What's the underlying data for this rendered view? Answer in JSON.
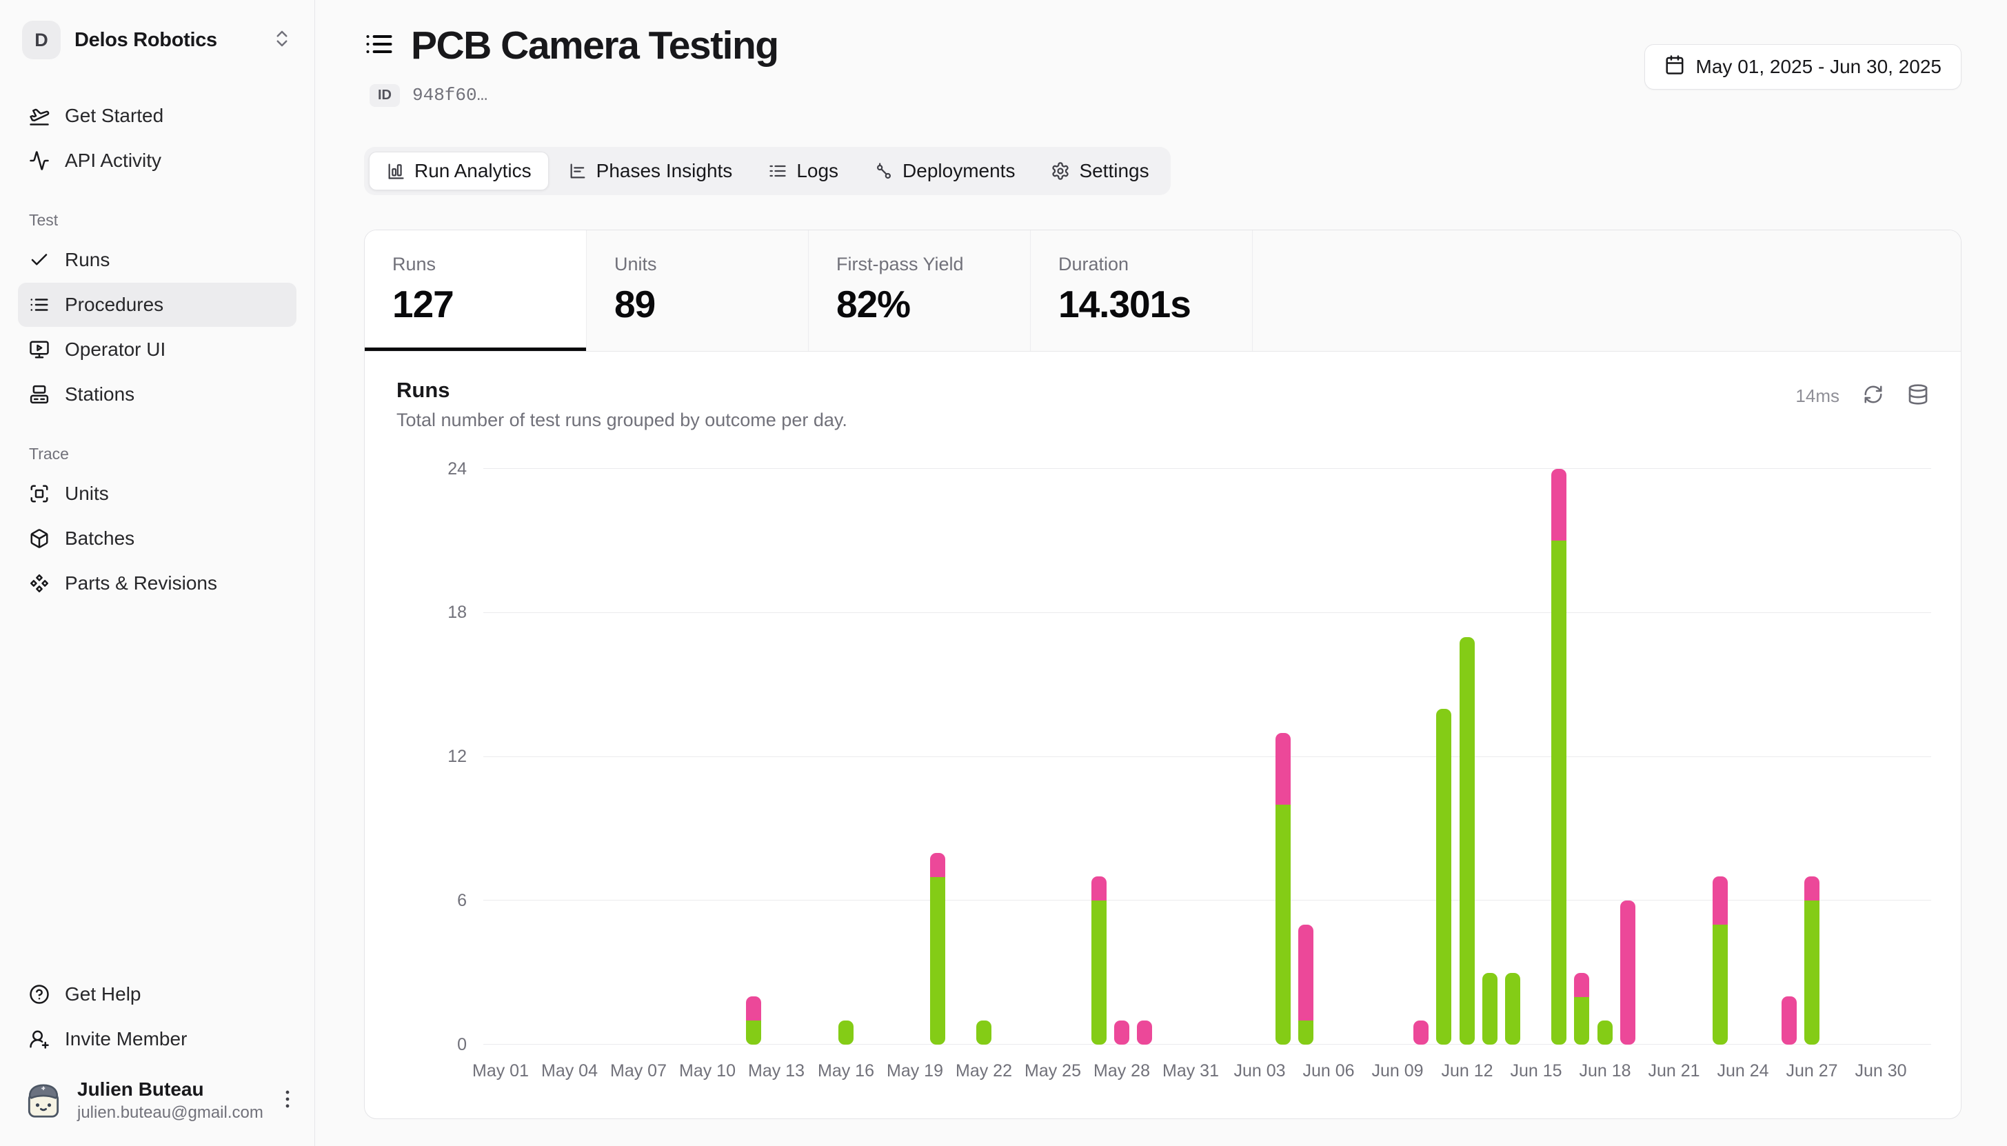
{
  "colors": {
    "pass": "#84cc16",
    "fail": "#ec4899",
    "border": "#e4e4e7"
  },
  "org": {
    "initial": "D",
    "name": "Delos Robotics"
  },
  "sidebar": {
    "top_items": [
      {
        "id": "get-started",
        "icon": "plane-takeoff-icon",
        "label": "Get Started"
      },
      {
        "id": "api-activity",
        "icon": "activity-icon",
        "label": "API Activity"
      }
    ],
    "sections": [
      {
        "label": "Test",
        "items": [
          {
            "id": "runs",
            "icon": "check-icon",
            "label": "Runs"
          },
          {
            "id": "procedures",
            "icon": "list-icon",
            "label": "Procedures",
            "active": true
          },
          {
            "id": "operator-ui",
            "icon": "monitor-play-icon",
            "label": "Operator UI"
          },
          {
            "id": "stations",
            "icon": "stations-icon",
            "label": "Stations"
          }
        ]
      },
      {
        "label": "Trace",
        "items": [
          {
            "id": "units",
            "icon": "scan-icon",
            "label": "Units"
          },
          {
            "id": "batches",
            "icon": "package-icon",
            "label": "Batches"
          },
          {
            "id": "parts-revisions",
            "icon": "component-icon",
            "label": "Parts & Revisions"
          }
        ]
      }
    ],
    "footer_items": [
      {
        "id": "get-help",
        "icon": "help-circle-icon",
        "label": "Get Help"
      },
      {
        "id": "invite-member",
        "icon": "user-plus-icon",
        "label": "Invite Member"
      }
    ],
    "user": {
      "name": "Julien Buteau",
      "email": "julien.buteau@gmail.com"
    }
  },
  "header": {
    "title": "PCB Camera Testing",
    "id_label": "ID",
    "id_value": "948f60…",
    "date_range": "May 01, 2025 - Jun 30, 2025"
  },
  "tabs": [
    {
      "label": "Run Analytics",
      "icon": "chart-column-icon",
      "active": true
    },
    {
      "label": "Phases Insights",
      "icon": "chart-bar-icon"
    },
    {
      "label": "Logs",
      "icon": "logs-icon"
    },
    {
      "label": "Deployments",
      "icon": "route-icon"
    },
    {
      "label": "Settings",
      "icon": "settings-icon"
    }
  ],
  "stats": [
    {
      "label": "Runs",
      "value": "127",
      "active": true
    },
    {
      "label": "Units",
      "value": "89"
    },
    {
      "label": "First-pass Yield",
      "value": "82%"
    },
    {
      "label": "Duration",
      "value": "14.301s"
    }
  ],
  "panel": {
    "title": "Runs",
    "subtitle": "Total number of test runs grouped by outcome per day.",
    "latency": "14ms"
  },
  "chart_data": {
    "type": "bar",
    "stacked": true,
    "title": "Runs per day by outcome",
    "x_start": "May 01, 2025",
    "x_end": "Jun 30, 2025",
    "days_total": 61,
    "x_tick_every_days": 3,
    "x_tick_labels": [
      "May 01",
      "May 04",
      "May 07",
      "May 10",
      "May 13",
      "May 16",
      "May 19",
      "May 22",
      "May 25",
      "May 28",
      "May 31",
      "Jun 03",
      "Jun 06",
      "Jun 09",
      "Jun 12",
      "Jun 15",
      "Jun 18",
      "Jun 21",
      "Jun 24",
      "Jun 27",
      "Jun 30"
    ],
    "y_ticks": [
      0,
      6,
      12,
      18,
      24
    ],
    "ylim": [
      0,
      24
    ],
    "grid": true,
    "legend": false,
    "series": [
      {
        "name": "pass",
        "color": "#84cc16"
      },
      {
        "name": "fail",
        "color": "#ec4899"
      }
    ],
    "bars": [
      {
        "date": "May 12",
        "day": 11,
        "pass": 1,
        "fail": 1
      },
      {
        "date": "May 16",
        "day": 15,
        "pass": 1,
        "fail": 0
      },
      {
        "date": "May 20",
        "day": 19,
        "pass": 7,
        "fail": 1
      },
      {
        "date": "May 22",
        "day": 21,
        "pass": 1,
        "fail": 0
      },
      {
        "date": "May 27",
        "day": 26,
        "pass": 6,
        "fail": 1
      },
      {
        "date": "May 28",
        "day": 27,
        "pass": 0,
        "fail": 1
      },
      {
        "date": "May 29",
        "day": 28,
        "pass": 0,
        "fail": 1
      },
      {
        "date": "Jun 04",
        "day": 34,
        "pass": 10,
        "fail": 3
      },
      {
        "date": "Jun 05",
        "day": 35,
        "pass": 1,
        "fail": 4
      },
      {
        "date": "Jun 10",
        "day": 40,
        "pass": 0,
        "fail": 1
      },
      {
        "date": "Jun 11",
        "day": 41,
        "pass": 14,
        "fail": 0
      },
      {
        "date": "Jun 12",
        "day": 42,
        "pass": 17,
        "fail": 0
      },
      {
        "date": "Jun 13",
        "day": 43,
        "pass": 3,
        "fail": 0
      },
      {
        "date": "Jun 14",
        "day": 44,
        "pass": 3,
        "fail": 0
      },
      {
        "date": "Jun 16",
        "day": 46,
        "pass": 21,
        "fail": 3
      },
      {
        "date": "Jun 17",
        "day": 47,
        "pass": 2,
        "fail": 1
      },
      {
        "date": "Jun 18",
        "day": 48,
        "pass": 1,
        "fail": 0
      },
      {
        "date": "Jun 19",
        "day": 49,
        "pass": 0,
        "fail": 6
      },
      {
        "date": "Jun 23",
        "day": 53,
        "pass": 5,
        "fail": 2
      },
      {
        "date": "Jun 26",
        "day": 56,
        "pass": 0,
        "fail": 2
      },
      {
        "date": "Jun 27",
        "day": 57,
        "pass": 6,
        "fail": 1
      }
    ]
  }
}
